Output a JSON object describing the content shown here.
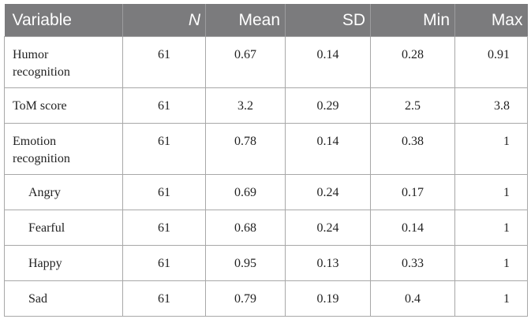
{
  "table": {
    "headers": [
      "Variable",
      "N",
      "Mean",
      "SD",
      "Min",
      "Max"
    ],
    "rows": [
      {
        "variable_line1": "Humor",
        "variable_line2": "recognition",
        "n": "61",
        "mean": "0.67",
        "sd": "0.14",
        "min": "0.28",
        "max": "0.91"
      },
      {
        "variable_line1": "ToM score",
        "variable_line2": "",
        "n": "61",
        "mean": "3.2",
        "sd": "0.29",
        "min": "2.5",
        "max": "3.8"
      },
      {
        "variable_line1": "Emotion",
        "variable_line2": "recognition",
        "n": "61",
        "mean": "0.78",
        "sd": "0.14",
        "min": "0.38",
        "max": "1"
      },
      {
        "variable_line1": "Angry",
        "variable_line2": "",
        "n": "61",
        "mean": "0.69",
        "sd": "0.24",
        "min": "0.17",
        "max": "1"
      },
      {
        "variable_line1": "Fearful",
        "variable_line2": "",
        "n": "61",
        "mean": "0.68",
        "sd": "0.24",
        "min": "0.14",
        "max": "1"
      },
      {
        "variable_line1": "Happy",
        "variable_line2": "",
        "n": "61",
        "mean": "0.95",
        "sd": "0.13",
        "min": "0.33",
        "max": "1"
      },
      {
        "variable_line1": "Sad",
        "variable_line2": "",
        "n": "61",
        "mean": "0.79",
        "sd": "0.19",
        "min": "0.4",
        "max": "1"
      }
    ]
  }
}
